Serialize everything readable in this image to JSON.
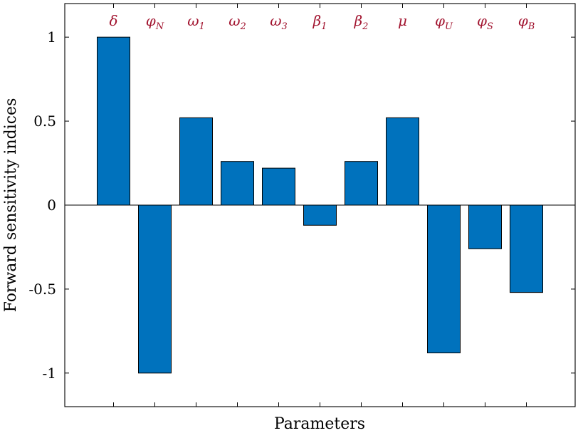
{
  "chart_data": {
    "type": "bar",
    "xlabel": "Parameters",
    "ylabel": "Forward sensitivity indices",
    "ylim": [
      -1.2,
      1.2
    ],
    "yticks": [
      -1,
      -0.5,
      0,
      0.5,
      1
    ],
    "ytick_labels": [
      "-1",
      "-0.5",
      "0",
      "0.5",
      "1"
    ],
    "categories": [
      {
        "base": "δ",
        "sub": ""
      },
      {
        "base": "φ",
        "sub": "N"
      },
      {
        "base": "ω",
        "sub": "1"
      },
      {
        "base": "ω",
        "sub": "2"
      },
      {
        "base": "ω",
        "sub": "3"
      },
      {
        "base": "β",
        "sub": "1"
      },
      {
        "base": "β",
        "sub": "2"
      },
      {
        "base": "μ",
        "sub": ""
      },
      {
        "base": "φ",
        "sub": "U"
      },
      {
        "base": "φ",
        "sub": "S"
      },
      {
        "base": "φ",
        "sub": "B"
      }
    ],
    "values": [
      1.0,
      -1.0,
      0.52,
      0.26,
      0.22,
      -0.12,
      0.26,
      0.52,
      -0.88,
      -0.26,
      -0.52
    ],
    "bar_color": "#0072BD",
    "label_color": "#A2142F",
    "grid": false
  }
}
